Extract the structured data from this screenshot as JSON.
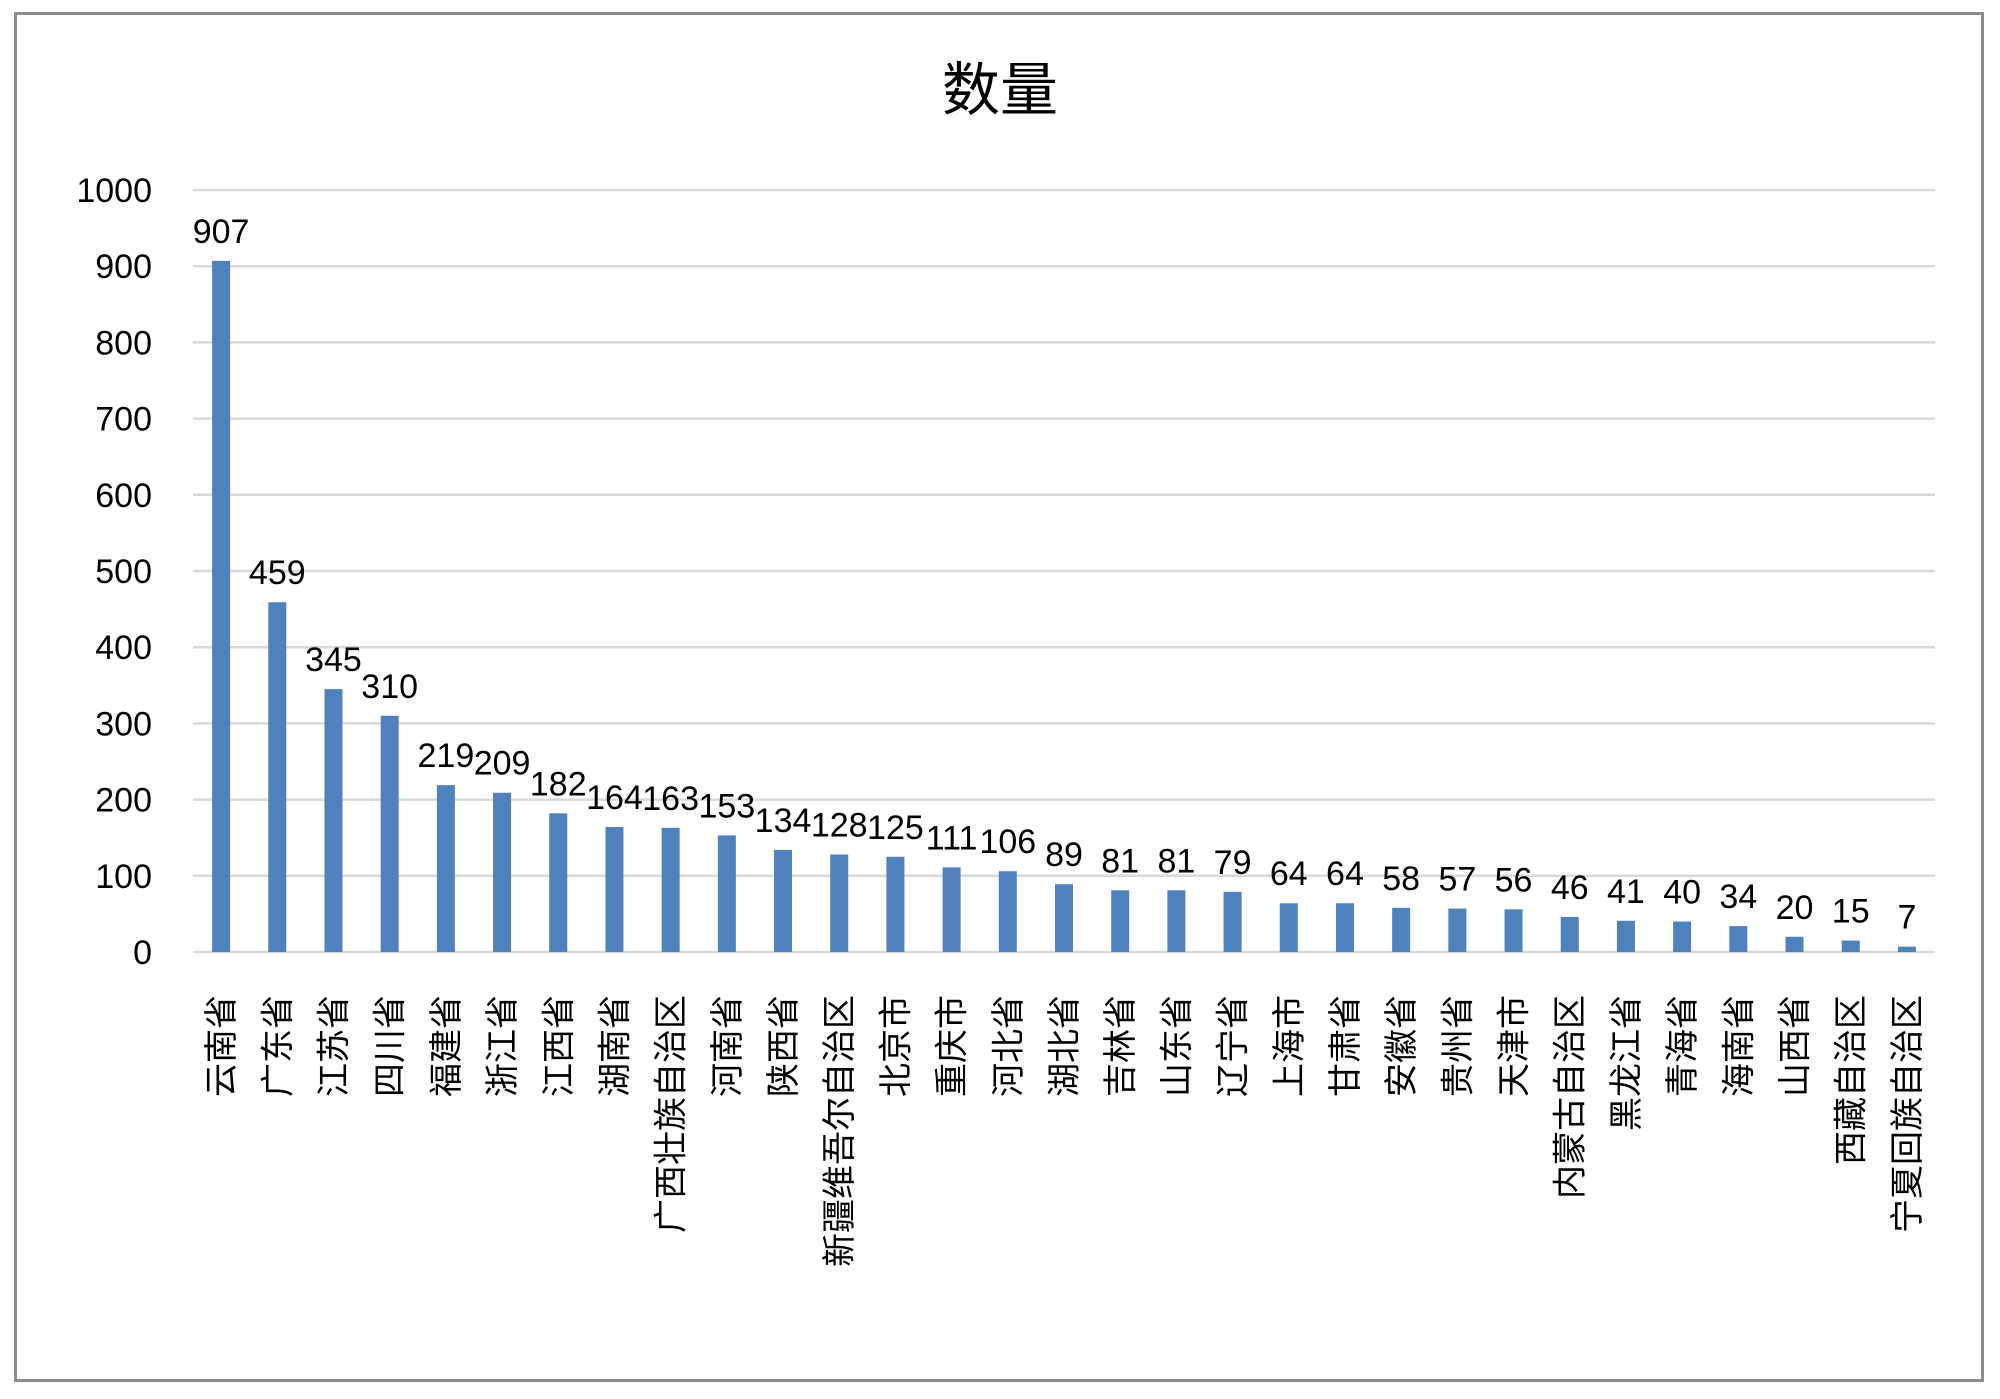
{
  "chart_data": {
    "type": "bar",
    "title": "数量",
    "xlabel": "",
    "ylabel": "",
    "ylim": [
      0,
      1000
    ],
    "yticks": [
      0,
      100,
      200,
      300,
      400,
      500,
      600,
      700,
      800,
      900,
      1000
    ],
    "grid": true,
    "legend": "none",
    "bar_color": "#4f81bd",
    "categories": [
      "云南省",
      "广东省",
      "江苏省",
      "四川省",
      "福建省",
      "浙江省",
      "江西省",
      "湖南省",
      "广西壮族自治区",
      "河南省",
      "陕西省",
      "新疆维吾尔自治区",
      "北京市",
      "重庆市",
      "河北省",
      "湖北省",
      "吉林省",
      "山东省",
      "辽宁省",
      "上海市",
      "甘肃省",
      "安徽省",
      "贵州省",
      "天津市",
      "内蒙古自治区",
      "黑龙江省",
      "青海省",
      "海南省",
      "山西省",
      "西藏自治区",
      "宁夏回族自治区"
    ],
    "values": [
      907,
      459,
      345,
      310,
      219,
      209,
      182,
      164,
      163,
      153,
      134,
      128,
      125,
      111,
      106,
      89,
      81,
      81,
      79,
      64,
      64,
      58,
      57,
      56,
      46,
      41,
      40,
      34,
      20,
      15,
      7
    ]
  }
}
